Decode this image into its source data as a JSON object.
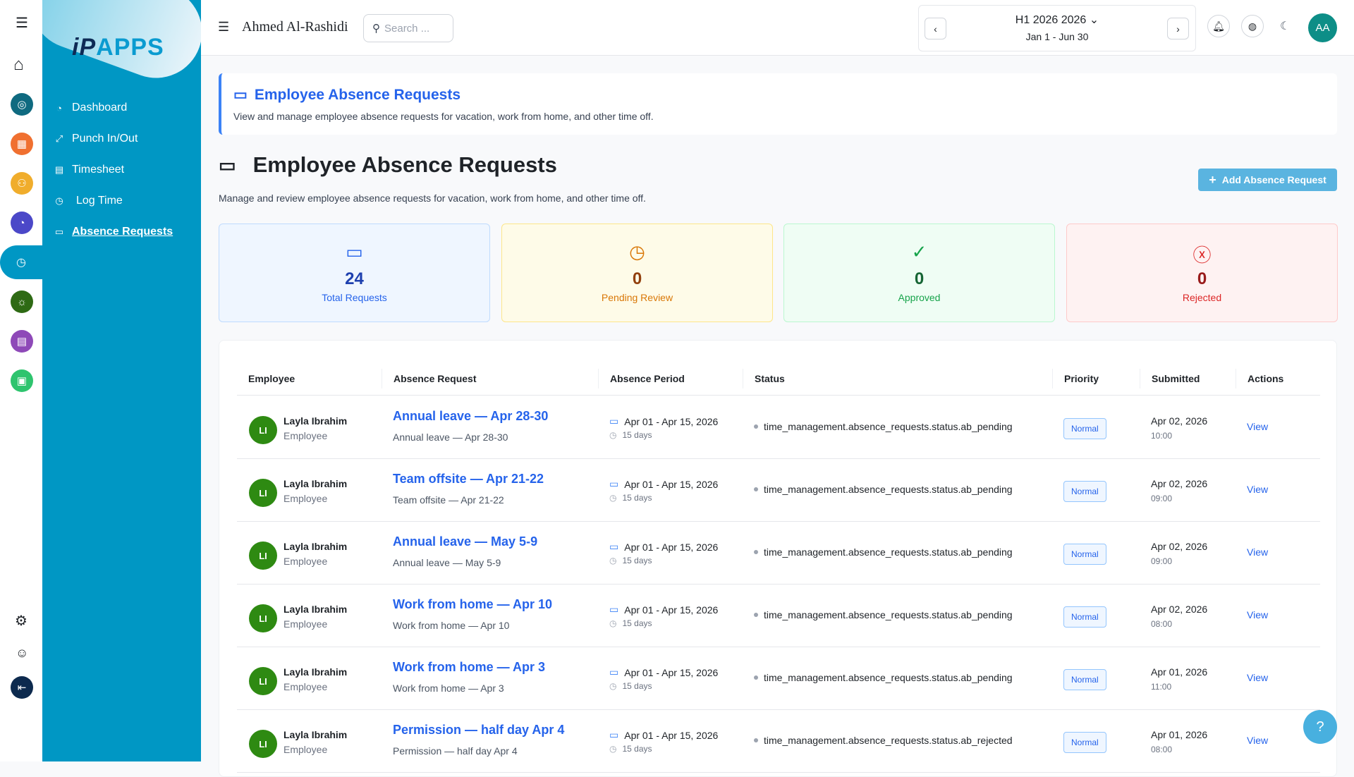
{
  "rail": {
    "icons": [
      "menu-icon",
      "home-icon",
      "target-icon",
      "grid-icon",
      "org-chart-icon",
      "gauge-icon",
      "clock-icon",
      "lightbulb-icon",
      "presentation-icon",
      "monitor-icon",
      "gear-icon",
      "user-icon",
      "logout-icon"
    ]
  },
  "sidebar": {
    "logo_text": "iPAPPS",
    "items": [
      {
        "label": "Dashboard",
        "icon": "gauge-icon"
      },
      {
        "label": "Punch In/Out",
        "icon": "arrows-icon"
      },
      {
        "label": "Timesheet",
        "icon": "document-icon"
      },
      {
        "label": "Log Time",
        "icon": "clock-document-icon"
      },
      {
        "label": "Absence Requests",
        "icon": "calendar-icon",
        "active": true
      }
    ]
  },
  "header": {
    "user_name": "Ahmed Al-Rashidi",
    "search_placeholder": "Search ...",
    "period_label": "H1 2026 2026",
    "period_range": "Jan 1 - Jun 30",
    "avatar_initials": "AA"
  },
  "banner": {
    "title": "Employee Absence Requests",
    "subtitle": "View and manage employee absence requests for vacation, work from home, and other time off."
  },
  "page": {
    "title": "Employee Absence Requests",
    "subtitle": "Manage and review employee absence requests for vacation, work from home, and other time off.",
    "add_button": "Add Absence Request"
  },
  "stats": [
    {
      "value": "24",
      "label": "Total Requests",
      "color": "#2563eb"
    },
    {
      "value": "0",
      "label": "Pending Review",
      "color": "#d97706"
    },
    {
      "value": "0",
      "label": "Approved",
      "color": "#16a34a"
    },
    {
      "value": "0",
      "label": "Rejected",
      "color": "#dc2626"
    }
  ],
  "table": {
    "columns": [
      "Employee",
      "Absence Request",
      "Absence Period",
      "Status",
      "Priority",
      "Submitted",
      "Actions"
    ],
    "rows": [
      {
        "initials": "LI",
        "name": "Layla Ibrahim",
        "role": "Employee",
        "title": "Annual leave — Apr 28-30",
        "desc": "Annual leave — Apr 28-30",
        "period": "Apr 01 - Apr 15, 2026",
        "days": "15 days",
        "status": "time_management.absence_requests.status.ab_pending",
        "priority": "Normal",
        "date": "Apr 02, 2026",
        "time": "10:00",
        "action": "View"
      },
      {
        "initials": "LI",
        "name": "Layla Ibrahim",
        "role": "Employee",
        "title": "Team offsite — Apr 21-22",
        "desc": "Team offsite — Apr 21-22",
        "period": "Apr 01 - Apr 15, 2026",
        "days": "15 days",
        "status": "time_management.absence_requests.status.ab_pending",
        "priority": "Normal",
        "date": "Apr 02, 2026",
        "time": "09:00",
        "action": "View"
      },
      {
        "initials": "LI",
        "name": "Layla Ibrahim",
        "role": "Employee",
        "title": "Annual leave — May 5-9",
        "desc": "Annual leave — May 5-9",
        "period": "Apr 01 - Apr 15, 2026",
        "days": "15 days",
        "status": "time_management.absence_requests.status.ab_pending",
        "priority": "Normal",
        "date": "Apr 02, 2026",
        "time": "09:00",
        "action": "View"
      },
      {
        "initials": "LI",
        "name": "Layla Ibrahim",
        "role": "Employee",
        "title": "Work from home — Apr 10",
        "desc": "Work from home — Apr 10",
        "period": "Apr 01 - Apr 15, 2026",
        "days": "15 days",
        "status": "time_management.absence_requests.status.ab_pending",
        "priority": "Normal",
        "date": "Apr 02, 2026",
        "time": "08:00",
        "action": "View"
      },
      {
        "initials": "LI",
        "name": "Layla Ibrahim",
        "role": "Employee",
        "title": "Work from home — Apr 3",
        "desc": "Work from home — Apr 3",
        "period": "Apr 01 - Apr 15, 2026",
        "days": "15 days",
        "status": "time_management.absence_requests.status.ab_pending",
        "priority": "Normal",
        "date": "Apr 01, 2026",
        "time": "11:00",
        "action": "View"
      },
      {
        "initials": "LI",
        "name": "Layla Ibrahim",
        "role": "Employee",
        "title": "Permission — half day Apr 4",
        "desc": "Permission — half day Apr 4",
        "period": "Apr 01 - Apr 15, 2026",
        "days": "15 days",
        "status": "time_management.absence_requests.status.ab_rejected",
        "priority": "Normal",
        "date": "Apr 01, 2026",
        "time": "08:00",
        "action": "View"
      }
    ]
  },
  "help": "?"
}
